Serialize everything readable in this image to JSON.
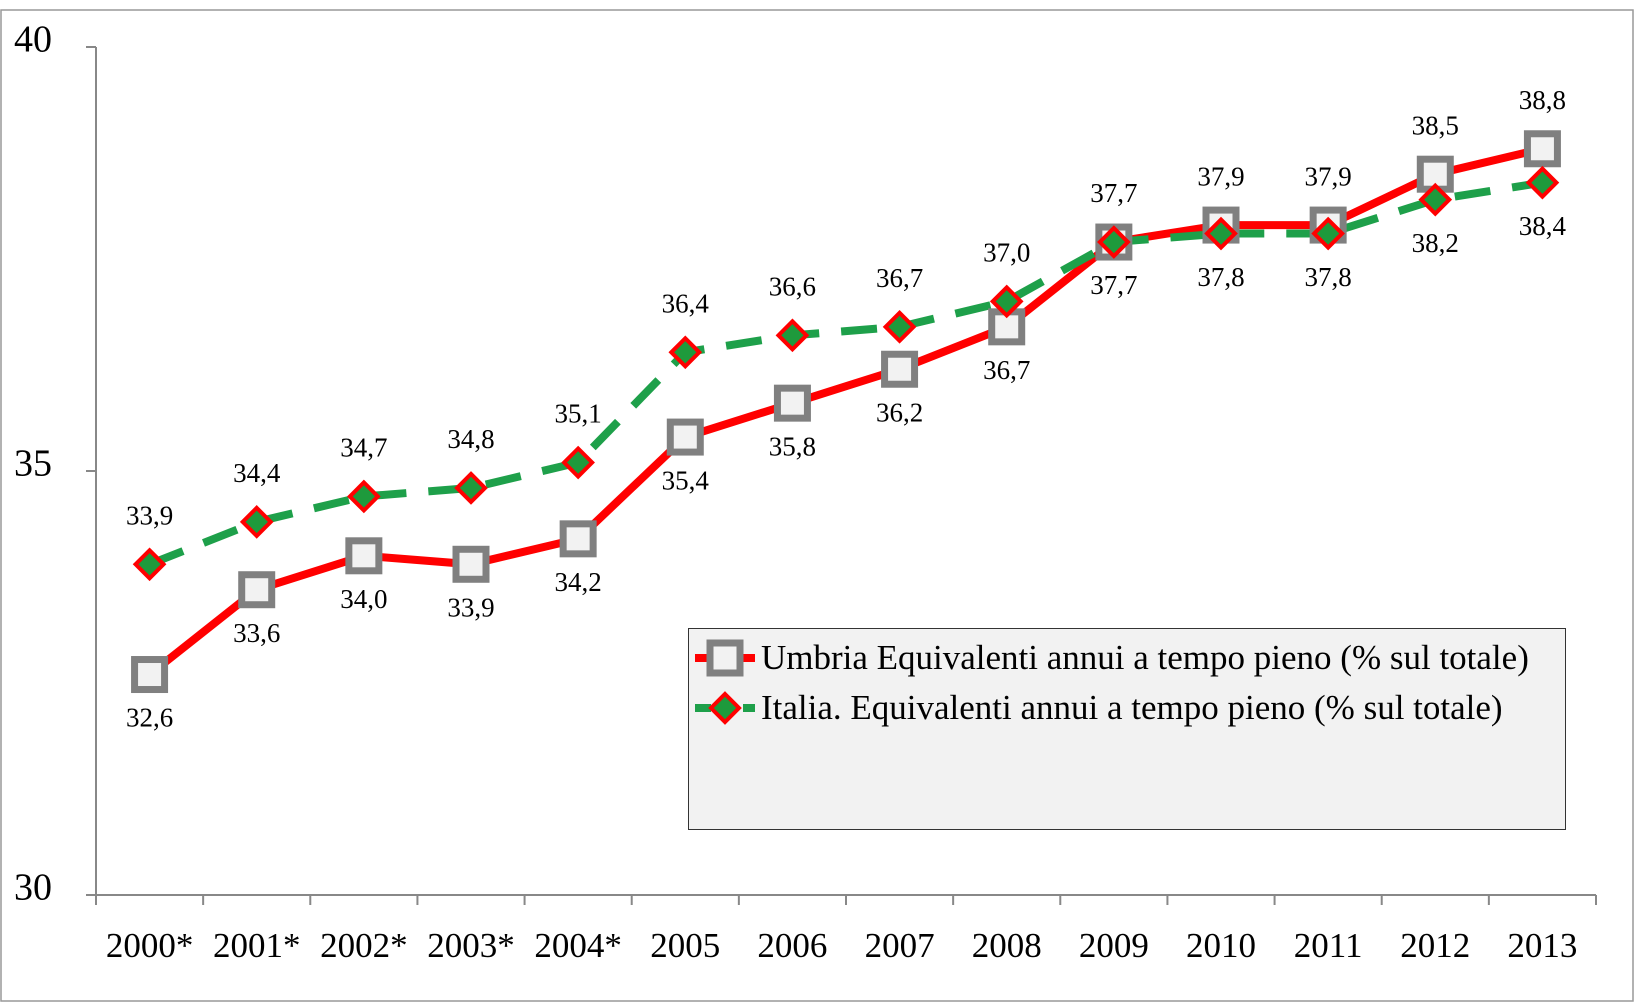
{
  "chart_data": {
    "type": "line",
    "categories": [
      "2000*",
      "2001*",
      "2002*",
      "2003*",
      "2004*",
      "2005",
      "2006",
      "2007",
      "2008",
      "2009",
      "2010",
      "2011",
      "2012",
      "2013"
    ],
    "series": [
      {
        "name": "Umbria Equivalenti annui a tempo pieno (% sul totale)",
        "color": "#ff0000",
        "marker": "square",
        "marker_color": "#808080",
        "marker_fill": "#f2f2f2",
        "dash": false,
        "values": [
          32.6,
          33.6,
          34.0,
          33.9,
          34.2,
          35.4,
          35.8,
          36.2,
          36.7,
          37.7,
          37.9,
          37.9,
          38.5,
          38.8
        ],
        "value_labels": [
          "32,6",
          "33,6",
          "34,0",
          "33,9",
          "34,2",
          "35,4",
          "35,8",
          "36,2",
          "36,7",
          "37,7",
          "37,9",
          "37,9",
          "38,5",
          "38,8"
        ]
      },
      {
        "name": "Italia. Equivalenti annui a tempo pieno (% sul totale)",
        "color": "#1ea04a",
        "marker": "diamond",
        "marker_color": "#ff0000",
        "marker_fill": "#1e9a3c",
        "dash": true,
        "values": [
          33.9,
          34.4,
          34.7,
          34.8,
          35.1,
          36.4,
          36.6,
          36.7,
          37.0,
          37.7,
          37.8,
          37.8,
          38.2,
          38.4
        ],
        "value_labels": [
          "33,9",
          "34,4",
          "34,7",
          "34,8",
          "35,1",
          "36,4",
          "36,6",
          "36,7",
          "37,0",
          "37,7",
          "37,8",
          "37,8",
          "38,2",
          "38,4"
        ]
      }
    ],
    "ylim": [
      30,
      40
    ],
    "yticks": [
      30,
      35,
      40
    ],
    "grid": false,
    "legend": "lower right"
  }
}
